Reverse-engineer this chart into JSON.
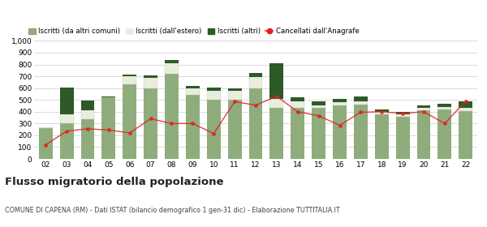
{
  "years": [
    "02",
    "03",
    "04",
    "05",
    "06",
    "07",
    "08",
    "09",
    "10",
    "11",
    "12",
    "13",
    "14",
    "15",
    "16",
    "17",
    "18",
    "19",
    "20",
    "21",
    "22"
  ],
  "iscritti_altri_comuni": [
    260,
    300,
    335,
    520,
    635,
    600,
    720,
    545,
    500,
    500,
    595,
    430,
    435,
    430,
    455,
    460,
    375,
    360,
    415,
    420,
    405
  ],
  "iscritti_estero": [
    5,
    80,
    80,
    5,
    65,
    85,
    90,
    55,
    80,
    75,
    100,
    80,
    55,
    25,
    25,
    30,
    25,
    20,
    15,
    20,
    30
  ],
  "iscritti_altri": [
    5,
    225,
    80,
    5,
    15,
    25,
    30,
    15,
    25,
    20,
    30,
    300,
    30,
    30,
    30,
    40,
    20,
    20,
    25,
    30,
    55
  ],
  "cancellati": [
    120,
    235,
    255,
    245,
    220,
    340,
    300,
    300,
    215,
    485,
    455,
    530,
    400,
    365,
    285,
    395,
    400,
    385,
    400,
    300,
    490
  ],
  "color_altri_comuni": "#8fac7c",
  "color_estero": "#e8eedc",
  "color_altri": "#2d5a27",
  "color_cancellati": "#e02020",
  "title": "Flusso migratorio della popolazione",
  "subtitle": "COMUNE DI CAPENA (RM) - Dati ISTAT (bilancio demografico 1 gen-31 dic) - Elaborazione TUTTITALIA.IT",
  "legend_labels": [
    "Iscritti (da altri comuni)",
    "Iscritti (dall'estero)",
    "Iscritti (altri)",
    "Cancellati dall'Anagrafe"
  ],
  "ylim": [
    0,
    1000
  ],
  "yticks": [
    0,
    100,
    200,
    300,
    400,
    500,
    600,
    700,
    800,
    900,
    1000
  ],
  "bg_color": "#ffffff",
  "grid_color": "#cccccc"
}
